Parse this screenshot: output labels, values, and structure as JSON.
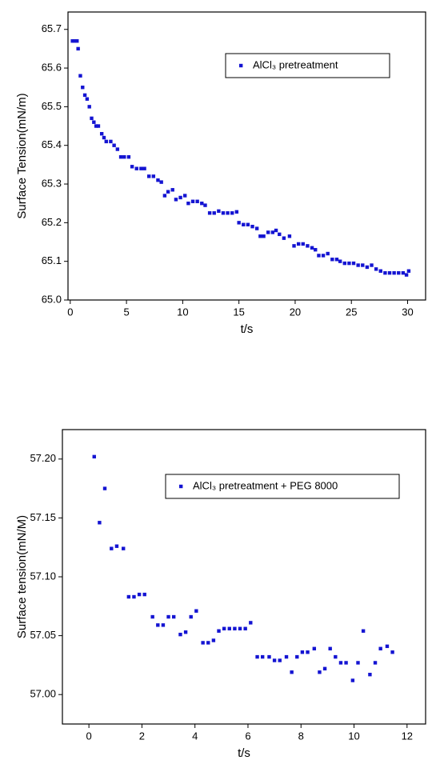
{
  "chart_data": [
    {
      "type": "scatter",
      "xlabel": "t/s",
      "ylabel": "Surface Tension(mN/m)",
      "series": [
        {
          "name": "AlCl₃ pretreatment",
          "color": "#1414d2",
          "x": [
            0.2,
            0.4,
            0.6,
            0.7,
            0.9,
            1.1,
            1.3,
            1.5,
            1.7,
            1.9,
            2.1,
            2.3,
            2.5,
            2.8,
            3.0,
            3.2,
            3.6,
            3.9,
            4.2,
            4.5,
            4.8,
            5.2,
            5.5,
            5.9,
            6.3,
            6.6,
            7.0,
            7.4,
            7.8,
            8.1,
            8.4,
            8.7,
            9.1,
            9.4,
            9.8,
            10.2,
            10.5,
            10.9,
            11.3,
            11.7,
            12.0,
            12.4,
            12.8,
            13.2,
            13.6,
            14.0,
            14.4,
            14.8,
            15.0,
            15.4,
            15.8,
            16.2,
            16.6,
            16.9,
            17.2,
            17.6,
            18.0,
            18.3,
            18.6,
            19.0,
            19.5,
            19.9,
            20.3,
            20.7,
            21.1,
            21.5,
            21.8,
            22.1,
            22.5,
            22.9,
            23.3,
            23.7,
            24.0,
            24.4,
            24.8,
            25.2,
            25.6,
            26.0,
            26.4,
            26.8,
            27.2,
            27.6,
            28.0,
            28.4,
            28.8,
            29.2,
            29.6,
            29.9,
            30.1
          ],
          "values": [
            65.67,
            65.67,
            65.67,
            65.65,
            65.58,
            65.55,
            65.53,
            65.52,
            65.5,
            65.47,
            65.46,
            65.45,
            65.45,
            65.43,
            65.42,
            65.41,
            65.41,
            65.4,
            65.39,
            65.37,
            65.37,
            65.37,
            65.345,
            65.34,
            65.34,
            65.34,
            65.32,
            65.32,
            65.31,
            65.305,
            65.27,
            65.28,
            65.285,
            65.26,
            65.265,
            65.27,
            65.25,
            65.255,
            65.255,
            65.25,
            65.245,
            65.225,
            65.225,
            65.23,
            65.225,
            65.225,
            65.225,
            65.228,
            65.2,
            65.195,
            65.195,
            65.19,
            65.185,
            65.165,
            65.165,
            65.175,
            65.175,
            65.18,
            65.17,
            65.16,
            65.165,
            65.14,
            65.145,
            65.145,
            65.14,
            65.135,
            65.13,
            65.115,
            65.115,
            65.12,
            65.105,
            65.105,
            65.1,
            65.095,
            65.095,
            65.095,
            65.09,
            65.09,
            65.085,
            65.09,
            65.08,
            65.075,
            65.07,
            65.07,
            65.07,
            65.07,
            65.07,
            65.065,
            65.075
          ]
        }
      ],
      "xlim": [
        -0.2,
        31.6
      ],
      "xticks": [
        0,
        5,
        10,
        15,
        20,
        25,
        30
      ],
      "ylim": [
        65.0,
        65.745
      ],
      "yticks": [
        {
          "value": 65.0,
          "label": "65.0"
        },
        65.1,
        65.2,
        65.3,
        65.4,
        65.5,
        65.6,
        65.7
      ],
      "legend": "upper right"
    },
    {
      "type": "scatter",
      "xlabel": "t/s",
      "ylabel": "Surface tension(mN/M)",
      "series": [
        {
          "name": "AlCl₃ pretreatment + PEG 8000",
          "color": "#1414d2",
          "x": [
            0.2,
            0.4,
            0.6,
            0.85,
            1.05,
            1.3,
            1.5,
            1.7,
            1.9,
            2.1,
            2.4,
            2.6,
            2.8,
            3.0,
            3.2,
            3.45,
            3.65,
            3.85,
            4.05,
            4.3,
            4.5,
            4.7,
            4.9,
            5.1,
            5.3,
            5.5,
            5.7,
            5.9,
            6.1,
            6.35,
            6.55,
            6.8,
            7.0,
            7.2,
            7.45,
            7.65,
            7.85,
            8.05,
            8.25,
            8.5,
            8.7,
            8.9,
            9.1,
            9.3,
            9.5,
            9.7,
            9.95,
            10.15,
            10.35,
            10.6,
            10.8,
            11.0,
            11.25,
            11.45
          ],
          "values": [
            57.202,
            57.146,
            57.175,
            57.124,
            57.126,
            57.124,
            57.083,
            57.083,
            57.085,
            57.085,
            57.066,
            57.059,
            57.059,
            57.066,
            57.066,
            57.051,
            57.053,
            57.066,
            57.071,
            57.044,
            57.044,
            57.046,
            57.054,
            57.056,
            57.056,
            57.056,
            57.056,
            57.056,
            57.061,
            57.032,
            57.032,
            57.032,
            57.029,
            57.029,
            57.032,
            57.019,
            57.032,
            57.036,
            57.036,
            57.039,
            57.019,
            57.022,
            57.039,
            57.032,
            57.027,
            57.027,
            57.012,
            57.027,
            57.054,
            57.017,
            57.027,
            57.039,
            57.041,
            57.036
          ]
        }
      ],
      "xlim": [
        -1.0,
        12.7
      ],
      "xticks": [
        0,
        2,
        4,
        6,
        8,
        10,
        12
      ],
      "ylim": [
        56.975,
        57.225
      ],
      "yticks": [
        {
          "value": 57.0,
          "label": "57.00"
        },
        {
          "value": 57.05,
          "label": "57.05"
        },
        {
          "value": 57.1,
          "label": "57.10"
        },
        {
          "value": 57.15,
          "label": "57.15"
        },
        {
          "value": 57.2,
          "label": "57.20"
        }
      ],
      "legend": "upper right"
    }
  ]
}
